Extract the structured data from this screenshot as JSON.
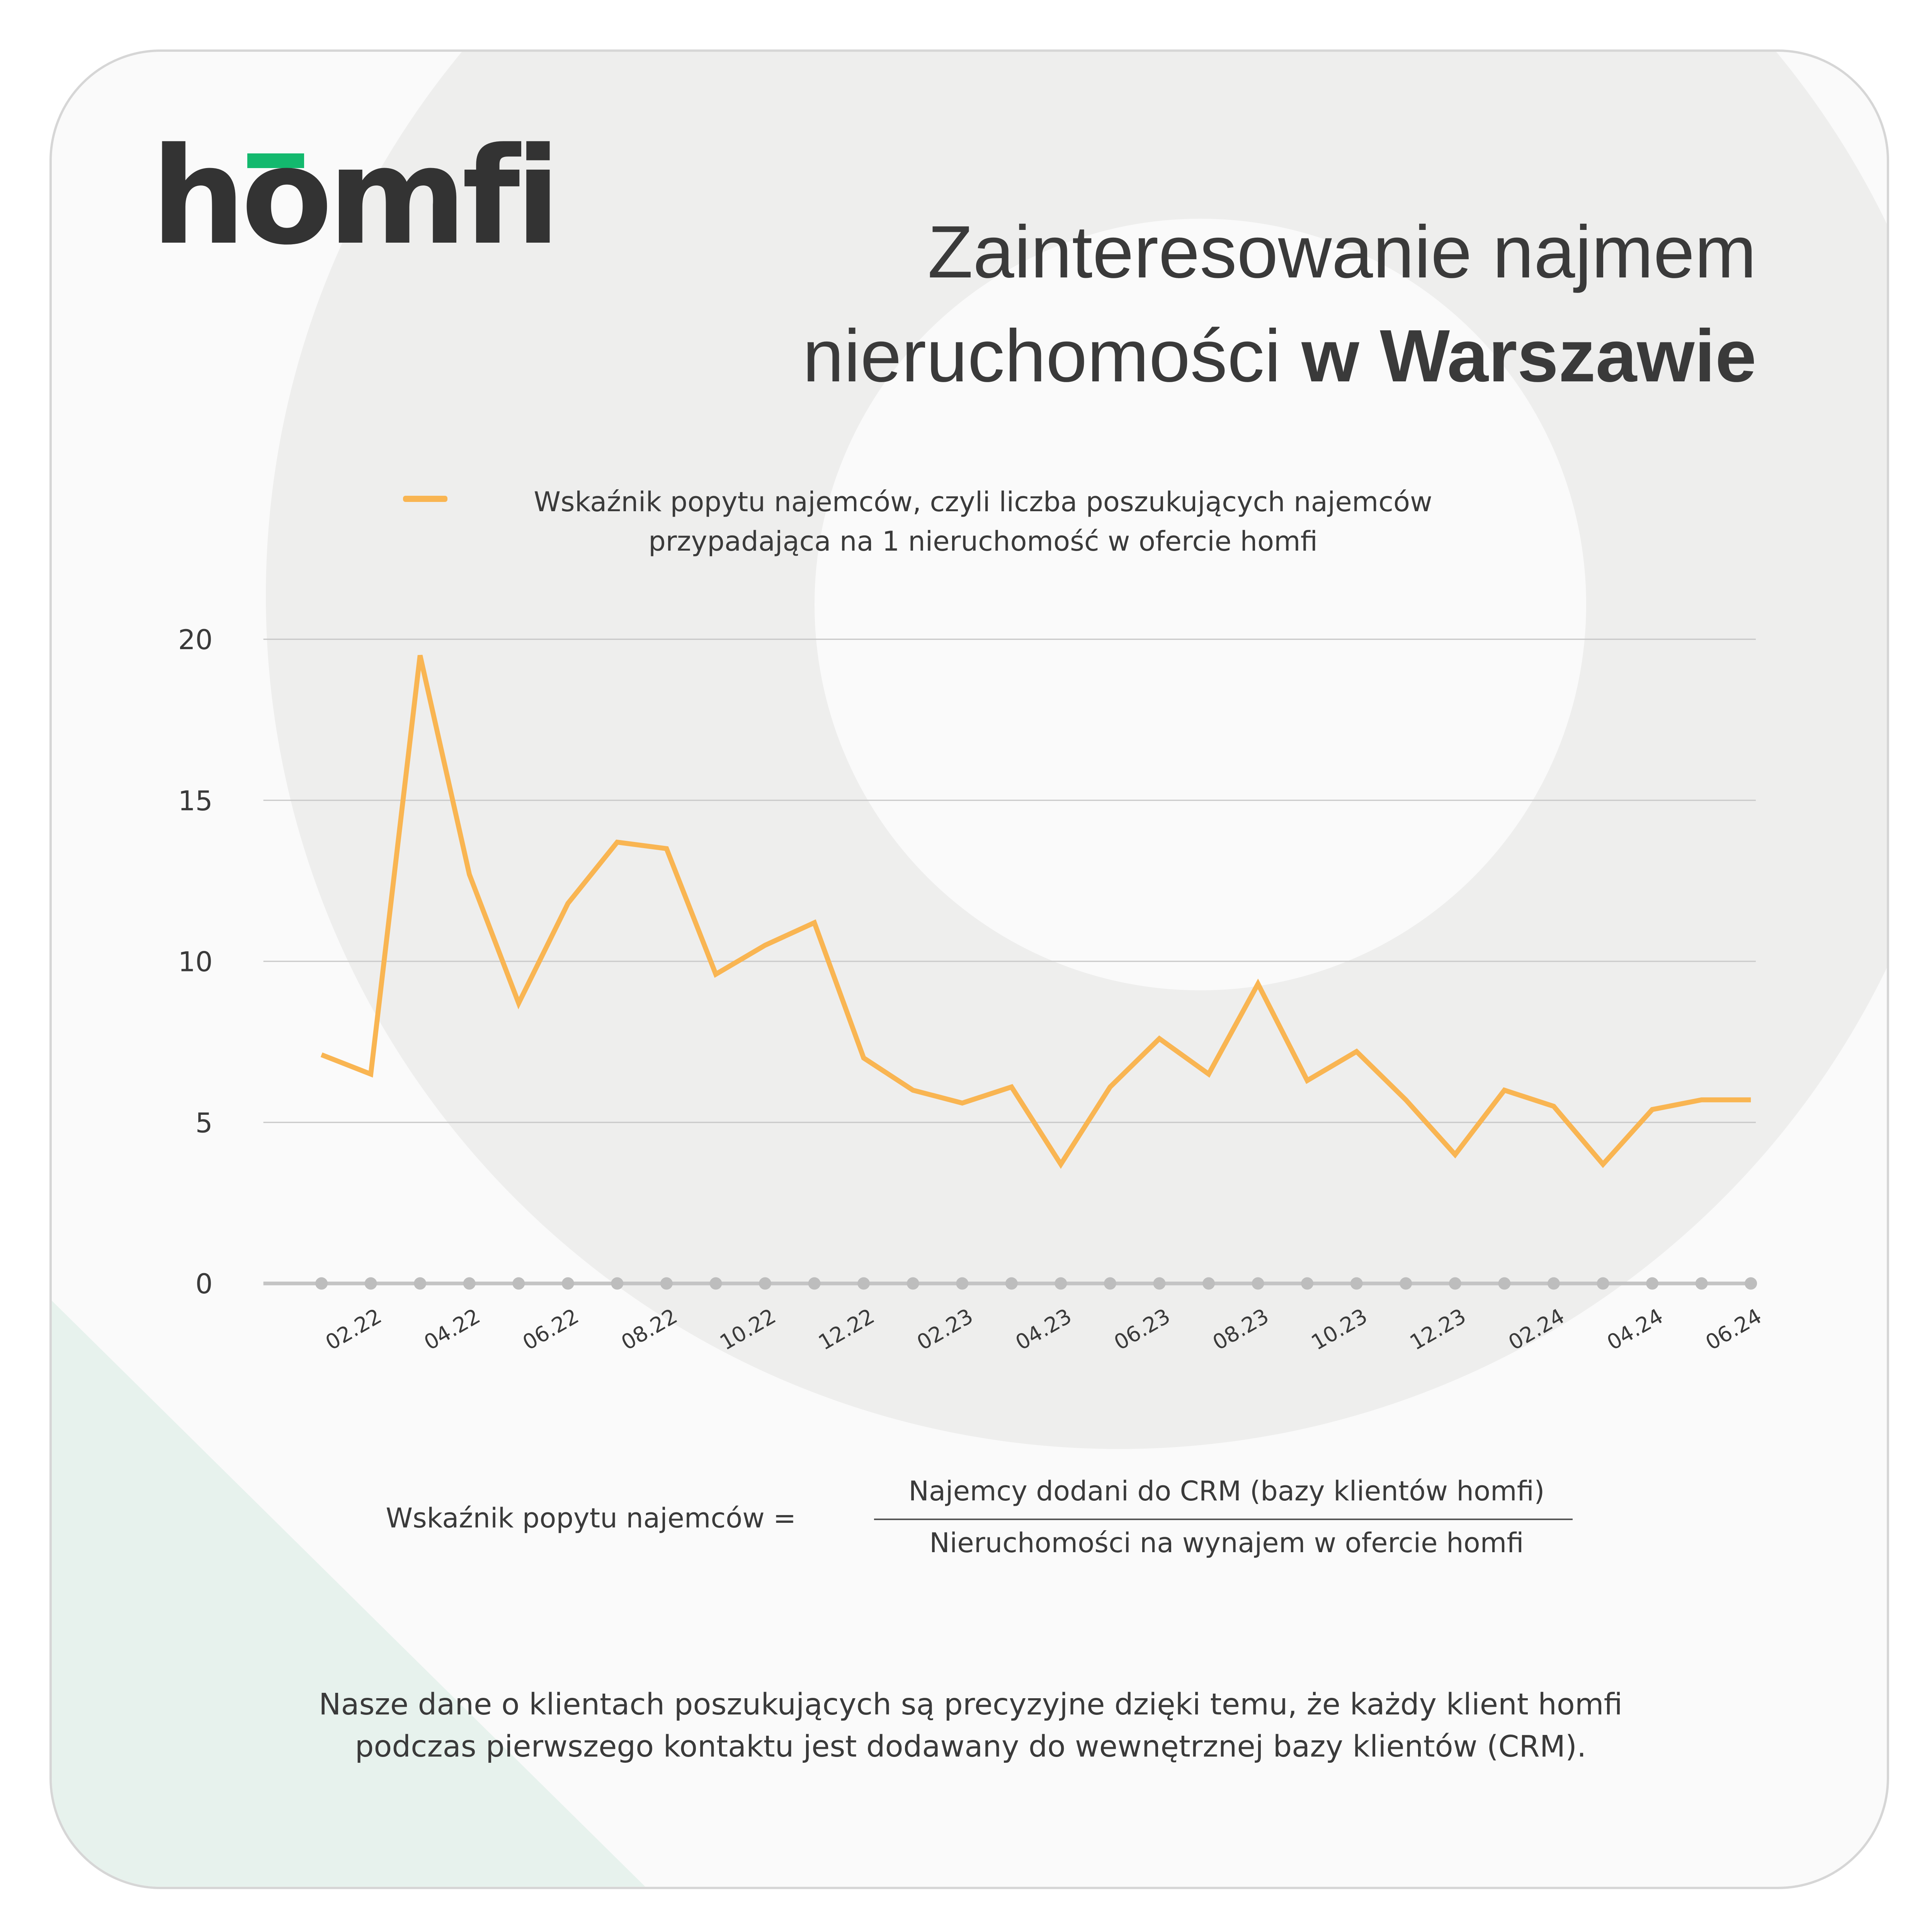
{
  "logo": {
    "text": "homfi",
    "accent_color": "#13b96e"
  },
  "title": {
    "line1": "Zainteresowanie najmem",
    "line2_regular": "nieruchomości ",
    "line2_bold": "w Warszawie"
  },
  "chart_data": {
    "type": "line",
    "legend": {
      "line1": "Wskaźnik popytu najemców, czyli liczba poszukujących najemców",
      "line2": "przypadająca na 1 nieruchomość w ofercie homfi",
      "placement": "top"
    },
    "series": [
      {
        "name": "Wskaźnik popytu najemców, czyli liczba poszukujących najemców przypadająca na 1 nieruchomość w ofercie homfi",
        "color": "#f9b552",
        "values": [
          7.1,
          6.5,
          19.5,
          12.7,
          8.7,
          11.8,
          13.7,
          13.5,
          9.6,
          10.5,
          11.2,
          7.0,
          6.0,
          5.6,
          6.1,
          3.7,
          6.1,
          7.6,
          6.5,
          9.3,
          6.3,
          7.2,
          5.7,
          4.0,
          6.0,
          5.5,
          3.7,
          5.4,
          5.7,
          5.7
        ]
      }
    ],
    "x": [
      "01.22",
      "02.22",
      "03.22",
      "04.22",
      "05.22",
      "06.22",
      "07.22",
      "08.22",
      "09.22",
      "10.22",
      "11.22",
      "12.22",
      "01.23",
      "02.23",
      "03.23",
      "04.23",
      "05.23",
      "06.23",
      "07.23",
      "08.23",
      "09.23",
      "10.23",
      "11.23",
      "12.23",
      "01.24",
      "02.24",
      "03.24",
      "04.24",
      "05.24",
      "06.24"
    ],
    "x_tick_labels": [
      "02.22",
      "04.22",
      "06.22",
      "08.22",
      "10.22",
      "12.22",
      "02.23",
      "04.23",
      "06.23",
      "08.23",
      "10.23",
      "12.23",
      "02.24",
      "04.24",
      "06.24"
    ],
    "y_ticks": [
      "0",
      "5",
      "10",
      "15",
      "20"
    ],
    "ylim": [
      0,
      20
    ],
    "grid": true
  },
  "formula": {
    "label": "Wskaźnik popytu najemców =",
    "numerator": "Najemcy dodani do CRM (bazy klientów homfi)",
    "denominator": "Nieruchomości na wynajem w ofercie homfi"
  },
  "footer": {
    "line1": "Nasze dane o klientach poszukujących są precyzyjne dzięki temu, że każdy klient homfi",
    "line2": "podczas pierwszego kontaktu jest dodawany do wewnętrznej bazy klientów (CRM)."
  }
}
